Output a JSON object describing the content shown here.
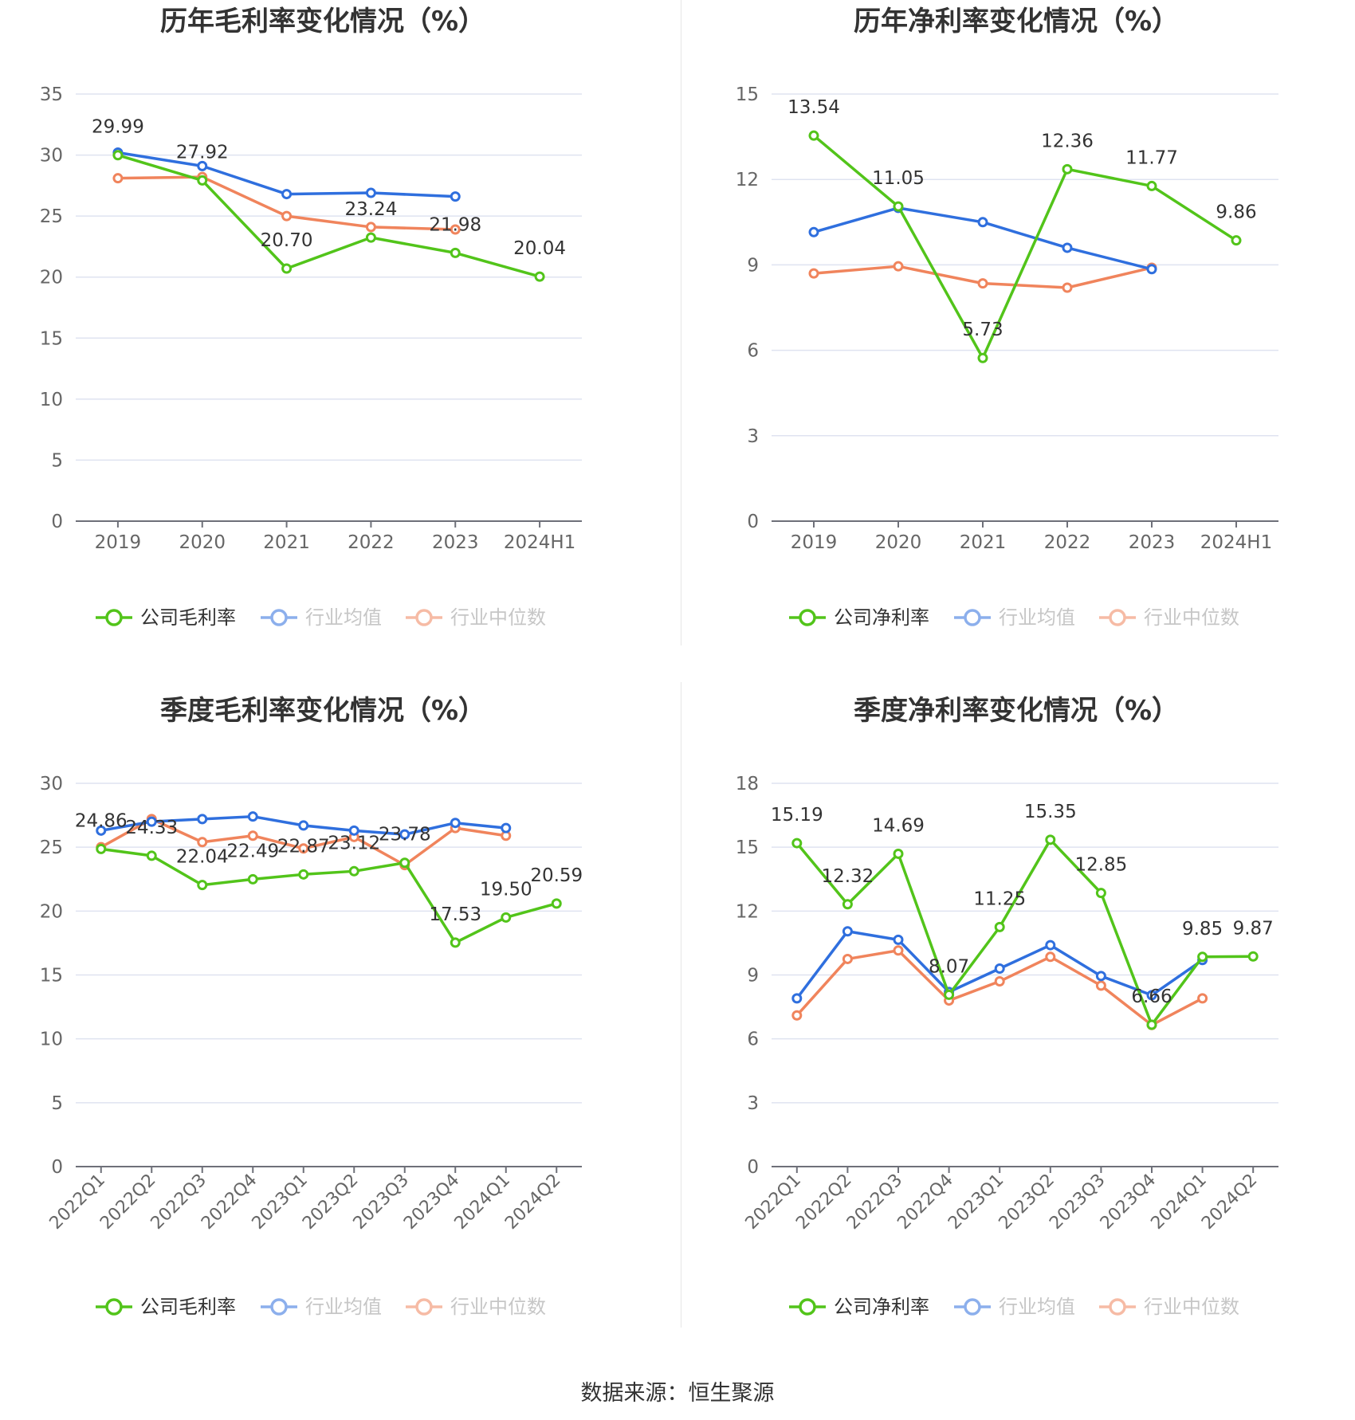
{
  "colors": {
    "company": "#52c41a",
    "avg": "#2f6fde",
    "median": "#f0845c",
    "grid": "#dfe3f0",
    "axis": "#6e7079",
    "tick": "#666666"
  },
  "source": "数据来源：恒生聚源",
  "charts": [
    {
      "title": "历年毛利率变化情况（%）",
      "chart_data": {
        "type": "line",
        "title": "历年毛利率变化情况（%）",
        "categories": [
          "2019",
          "2020",
          "2021",
          "2022",
          "2023",
          "2024H1"
        ],
        "ylim": [
          0,
          35
        ],
        "yticks": [
          "0",
          "5",
          "10",
          "15",
          "20",
          "25",
          "30",
          "35"
        ],
        "series": [
          {
            "name": "公司毛利率",
            "values": [
              29.99,
              27.92,
              20.7,
              23.24,
              21.98,
              20.04
            ],
            "labels": [
              "29.99",
              "27.92",
              "20.70",
              "23.24",
              "21.98",
              "20.04"
            ]
          },
          {
            "name": "行业均值",
            "values": [
              30.2,
              29.1,
              26.8,
              26.9,
              26.6,
              null
            ]
          },
          {
            "name": "行业中位数",
            "values": [
              28.1,
              28.2,
              25.0,
              24.1,
              23.9,
              null
            ]
          }
        ]
      }
    },
    {
      "title": "历年净利率变化情况（%）",
      "chart_data": {
        "type": "line",
        "title": "历年净利率变化情况（%）",
        "categories": [
          "2019",
          "2020",
          "2021",
          "2022",
          "2023",
          "2024H1"
        ],
        "ylim": [
          0,
          15
        ],
        "yticks": [
          "0",
          "3",
          "6",
          "9",
          "12",
          "15"
        ],
        "series": [
          {
            "name": "公司净利率",
            "values": [
              13.54,
              11.05,
              5.73,
              12.36,
              11.77,
              9.86
            ],
            "labels": [
              "13.54",
              "11.05",
              "5.73",
              "12.36",
              "11.77",
              "9.86"
            ]
          },
          {
            "name": "行业均值",
            "values": [
              10.15,
              11.0,
              10.5,
              9.6,
              8.85,
              null
            ]
          },
          {
            "name": "行业中位数",
            "values": [
              8.7,
              8.95,
              8.35,
              8.2,
              8.9,
              null
            ]
          }
        ]
      }
    },
    {
      "title": "季度毛利率变化情况（%）",
      "chart_data": {
        "type": "line",
        "title": "季度毛利率变化情况（%）",
        "categories": [
          "2022Q1",
          "2022Q2",
          "2022Q3",
          "2022Q4",
          "2023Q1",
          "2023Q2",
          "2023Q3",
          "2023Q4",
          "2024Q1",
          "2024Q2"
        ],
        "ylim": [
          0,
          30
        ],
        "yticks": [
          "0",
          "5",
          "10",
          "15",
          "20",
          "25",
          "30"
        ],
        "series": [
          {
            "name": "公司毛利率",
            "values": [
              24.86,
              24.33,
              22.04,
              22.49,
              22.87,
              23.12,
              23.78,
              17.53,
              19.5,
              20.59
            ],
            "labels": [
              "24.86",
              "24.33",
              "22.04",
              "22.49",
              "22.87",
              "23.12",
              "23.78",
              "17.53",
              "19.50",
              "20.59"
            ]
          },
          {
            "name": "行业均值",
            "values": [
              26.3,
              27.0,
              27.2,
              27.4,
              26.7,
              26.3,
              26.0,
              26.9,
              26.5,
              null
            ]
          },
          {
            "name": "行业中位数",
            "values": [
              25.0,
              27.2,
              25.4,
              25.9,
              24.9,
              25.8,
              23.6,
              26.5,
              25.9,
              null
            ]
          }
        ]
      }
    },
    {
      "title": "季度净利率变化情况（%）",
      "chart_data": {
        "type": "line",
        "title": "季度净利率变化情况（%）",
        "categories": [
          "2022Q1",
          "2022Q2",
          "2022Q3",
          "2022Q4",
          "2023Q1",
          "2023Q2",
          "2023Q3",
          "2023Q4",
          "2024Q1",
          "2024Q2"
        ],
        "ylim": [
          0,
          18
        ],
        "yticks": [
          "0",
          "3",
          "6",
          "9",
          "12",
          "15",
          "18"
        ],
        "series": [
          {
            "name": "公司净利率",
            "values": [
              15.19,
              12.32,
              14.69,
              8.07,
              11.25,
              15.35,
              12.85,
              6.66,
              9.85,
              9.87
            ],
            "labels": [
              "15.19",
              "12.32",
              "14.69",
              "8.07",
              "11.25",
              "15.35",
              "12.85",
              "6.66",
              "9.85",
              "9.87"
            ]
          },
          {
            "name": "行业均值",
            "values": [
              7.9,
              11.05,
              10.65,
              8.2,
              9.3,
              10.4,
              8.95,
              8.05,
              9.7,
              null
            ]
          },
          {
            "name": "行业中位数",
            "values": [
              7.1,
              9.75,
              10.15,
              7.8,
              8.7,
              9.85,
              8.5,
              6.65,
              7.9,
              null
            ]
          }
        ]
      }
    }
  ]
}
